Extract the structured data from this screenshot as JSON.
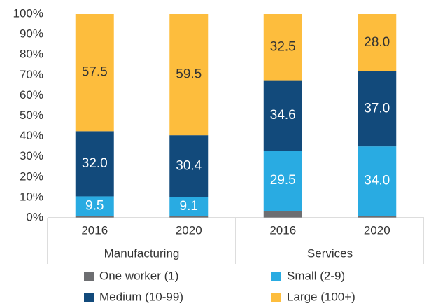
{
  "chart_data": {
    "type": "stacked_bar",
    "categories": [
      "2016",
      "2020",
      "2016",
      "2020"
    ],
    "groups": [
      "Manufacturing",
      "Services"
    ],
    "ylim": [
      0,
      100
    ],
    "yticks": [
      {
        "value": 0,
        "label": "0%"
      },
      {
        "value": 10,
        "label": "10%"
      },
      {
        "value": 20,
        "label": "20%"
      },
      {
        "value": 30,
        "label": "30%"
      },
      {
        "value": 40,
        "label": "40%"
      },
      {
        "value": 50,
        "label": "50%"
      },
      {
        "value": 60,
        "label": "60%"
      },
      {
        "value": 70,
        "label": "70%"
      },
      {
        "value": 80,
        "label": "80%"
      },
      {
        "value": 90,
        "label": "90%"
      },
      {
        "value": 100,
        "label": "100%"
      }
    ],
    "series": [
      {
        "name": "One worker (1)",
        "color": "#6d6e71",
        "values": [
          1.0,
          1.0,
          3.4,
          1.0
        ]
      },
      {
        "name": "Small (2-9)",
        "color": "#29abe2",
        "label_color": "#ffffff",
        "values": [
          9.5,
          9.1,
          29.5,
          34.0
        ],
        "value_labels": [
          "9.5",
          "9.1",
          "29.5",
          "34.0"
        ]
      },
      {
        "name": "Medium (10-99)",
        "color": "#124a7b",
        "label_color": "#ffffff",
        "values": [
          32.0,
          30.4,
          34.6,
          37.0
        ],
        "value_labels": [
          "32.0",
          "30.4",
          "34.6",
          "37.0"
        ]
      },
      {
        "name": "Large (100+)",
        "color": "#fdbd3d",
        "label_color": "#333333",
        "values": [
          57.5,
          59.5,
          32.5,
          28.0
        ],
        "value_labels": [
          "57.5",
          "59.5",
          "32.5",
          "28.0"
        ]
      }
    ],
    "legend": "bottom"
  }
}
